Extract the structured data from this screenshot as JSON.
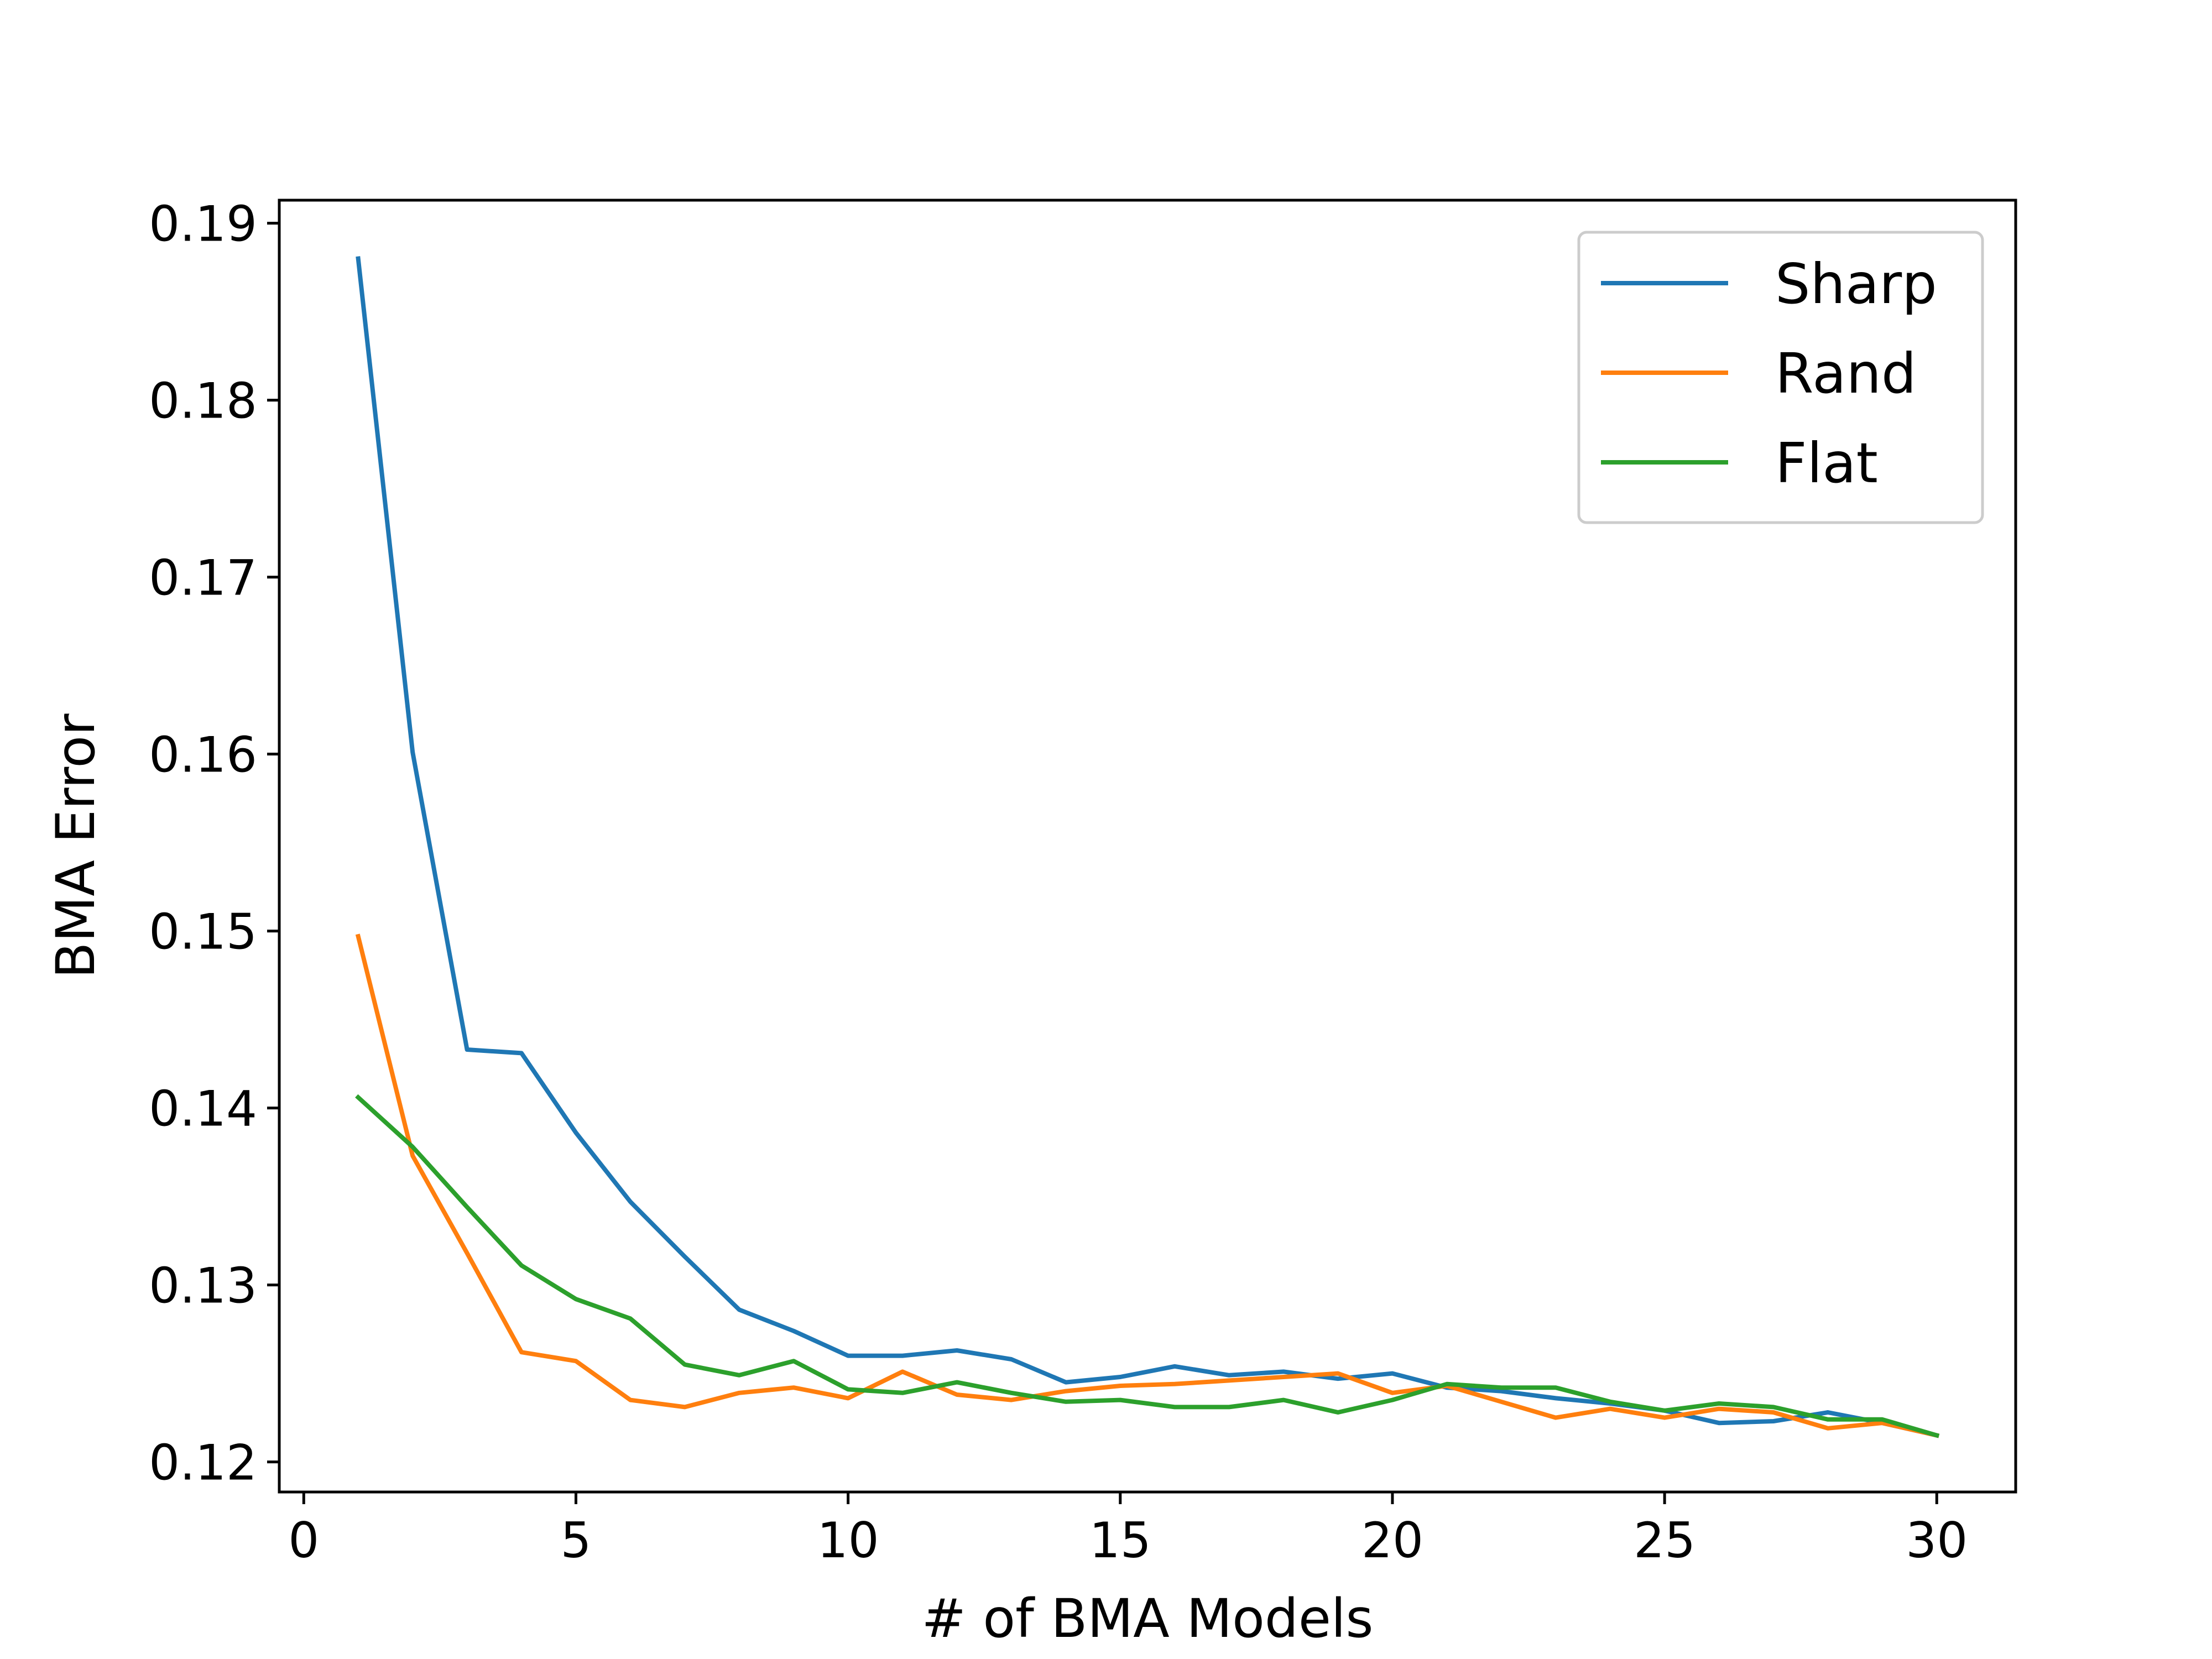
{
  "chart_data": {
    "type": "line",
    "title": "",
    "xlabel": "# of BMA Models",
    "ylabel": "BMA Error",
    "xlim": [
      -0.45,
      31.45
    ],
    "ylim": [
      0.1183,
      0.1913
    ],
    "xticks": [
      0,
      5,
      10,
      15,
      20,
      25,
      30
    ],
    "yticks": [
      0.12,
      0.13,
      0.14,
      0.15,
      0.16,
      0.17,
      0.18,
      0.19
    ],
    "xtick_labels": [
      "0",
      "5",
      "10",
      "15",
      "20",
      "25",
      "30"
    ],
    "ytick_labels": [
      "0.12",
      "0.13",
      "0.14",
      "0.15",
      "0.16",
      "0.17",
      "0.18",
      "0.19"
    ],
    "grid": false,
    "legend_position": "top-right",
    "x": [
      1,
      2,
      3,
      4,
      5,
      6,
      7,
      8,
      9,
      10,
      11,
      12,
      13,
      14,
      15,
      16,
      17,
      18,
      19,
      20,
      21,
      22,
      23,
      24,
      25,
      26,
      27,
      28,
      29,
      30
    ],
    "series": [
      {
        "name": "Sharp",
        "color": "#1f77b4",
        "values": [
          0.188,
          0.1601,
          0.1433,
          0.1431,
          0.1386,
          0.1347,
          0.1316,
          0.1286,
          0.1274,
          0.126,
          0.126,
          0.1263,
          0.1258,
          0.1245,
          0.1248,
          0.1254,
          0.1249,
          0.1251,
          0.1247,
          0.125,
          0.1242,
          0.124,
          0.1236,
          0.1233,
          0.1229,
          0.1222,
          0.1223,
          0.1228,
          0.1222,
          0.1215
        ]
      },
      {
        "name": "Rand",
        "color": "#ff7f0e",
        "values": [
          0.1497,
          0.1373,
          0.1318,
          0.1262,
          0.1257,
          0.1235,
          0.1231,
          0.1239,
          0.1242,
          0.1236,
          0.1251,
          0.1238,
          0.1235,
          0.124,
          0.1243,
          0.1244,
          0.1246,
          0.1248,
          0.125,
          0.1239,
          0.1243,
          0.1234,
          0.1225,
          0.123,
          0.1225,
          0.123,
          0.1228,
          0.1219,
          0.1222,
          0.1215
        ]
      },
      {
        "name": "Flat",
        "color": "#2ca02c",
        "values": [
          0.1406,
          0.1378,
          0.1344,
          0.1311,
          0.1292,
          0.1281,
          0.1255,
          0.1249,
          0.1257,
          0.1241,
          0.1239,
          0.1245,
          0.1239,
          0.1234,
          0.1235,
          0.1231,
          0.1231,
          0.1235,
          0.1228,
          0.1235,
          0.1244,
          0.1242,
          0.1242,
          0.1234,
          0.1229,
          0.1233,
          0.1231,
          0.1224,
          0.1224,
          0.1215
        ]
      }
    ]
  }
}
